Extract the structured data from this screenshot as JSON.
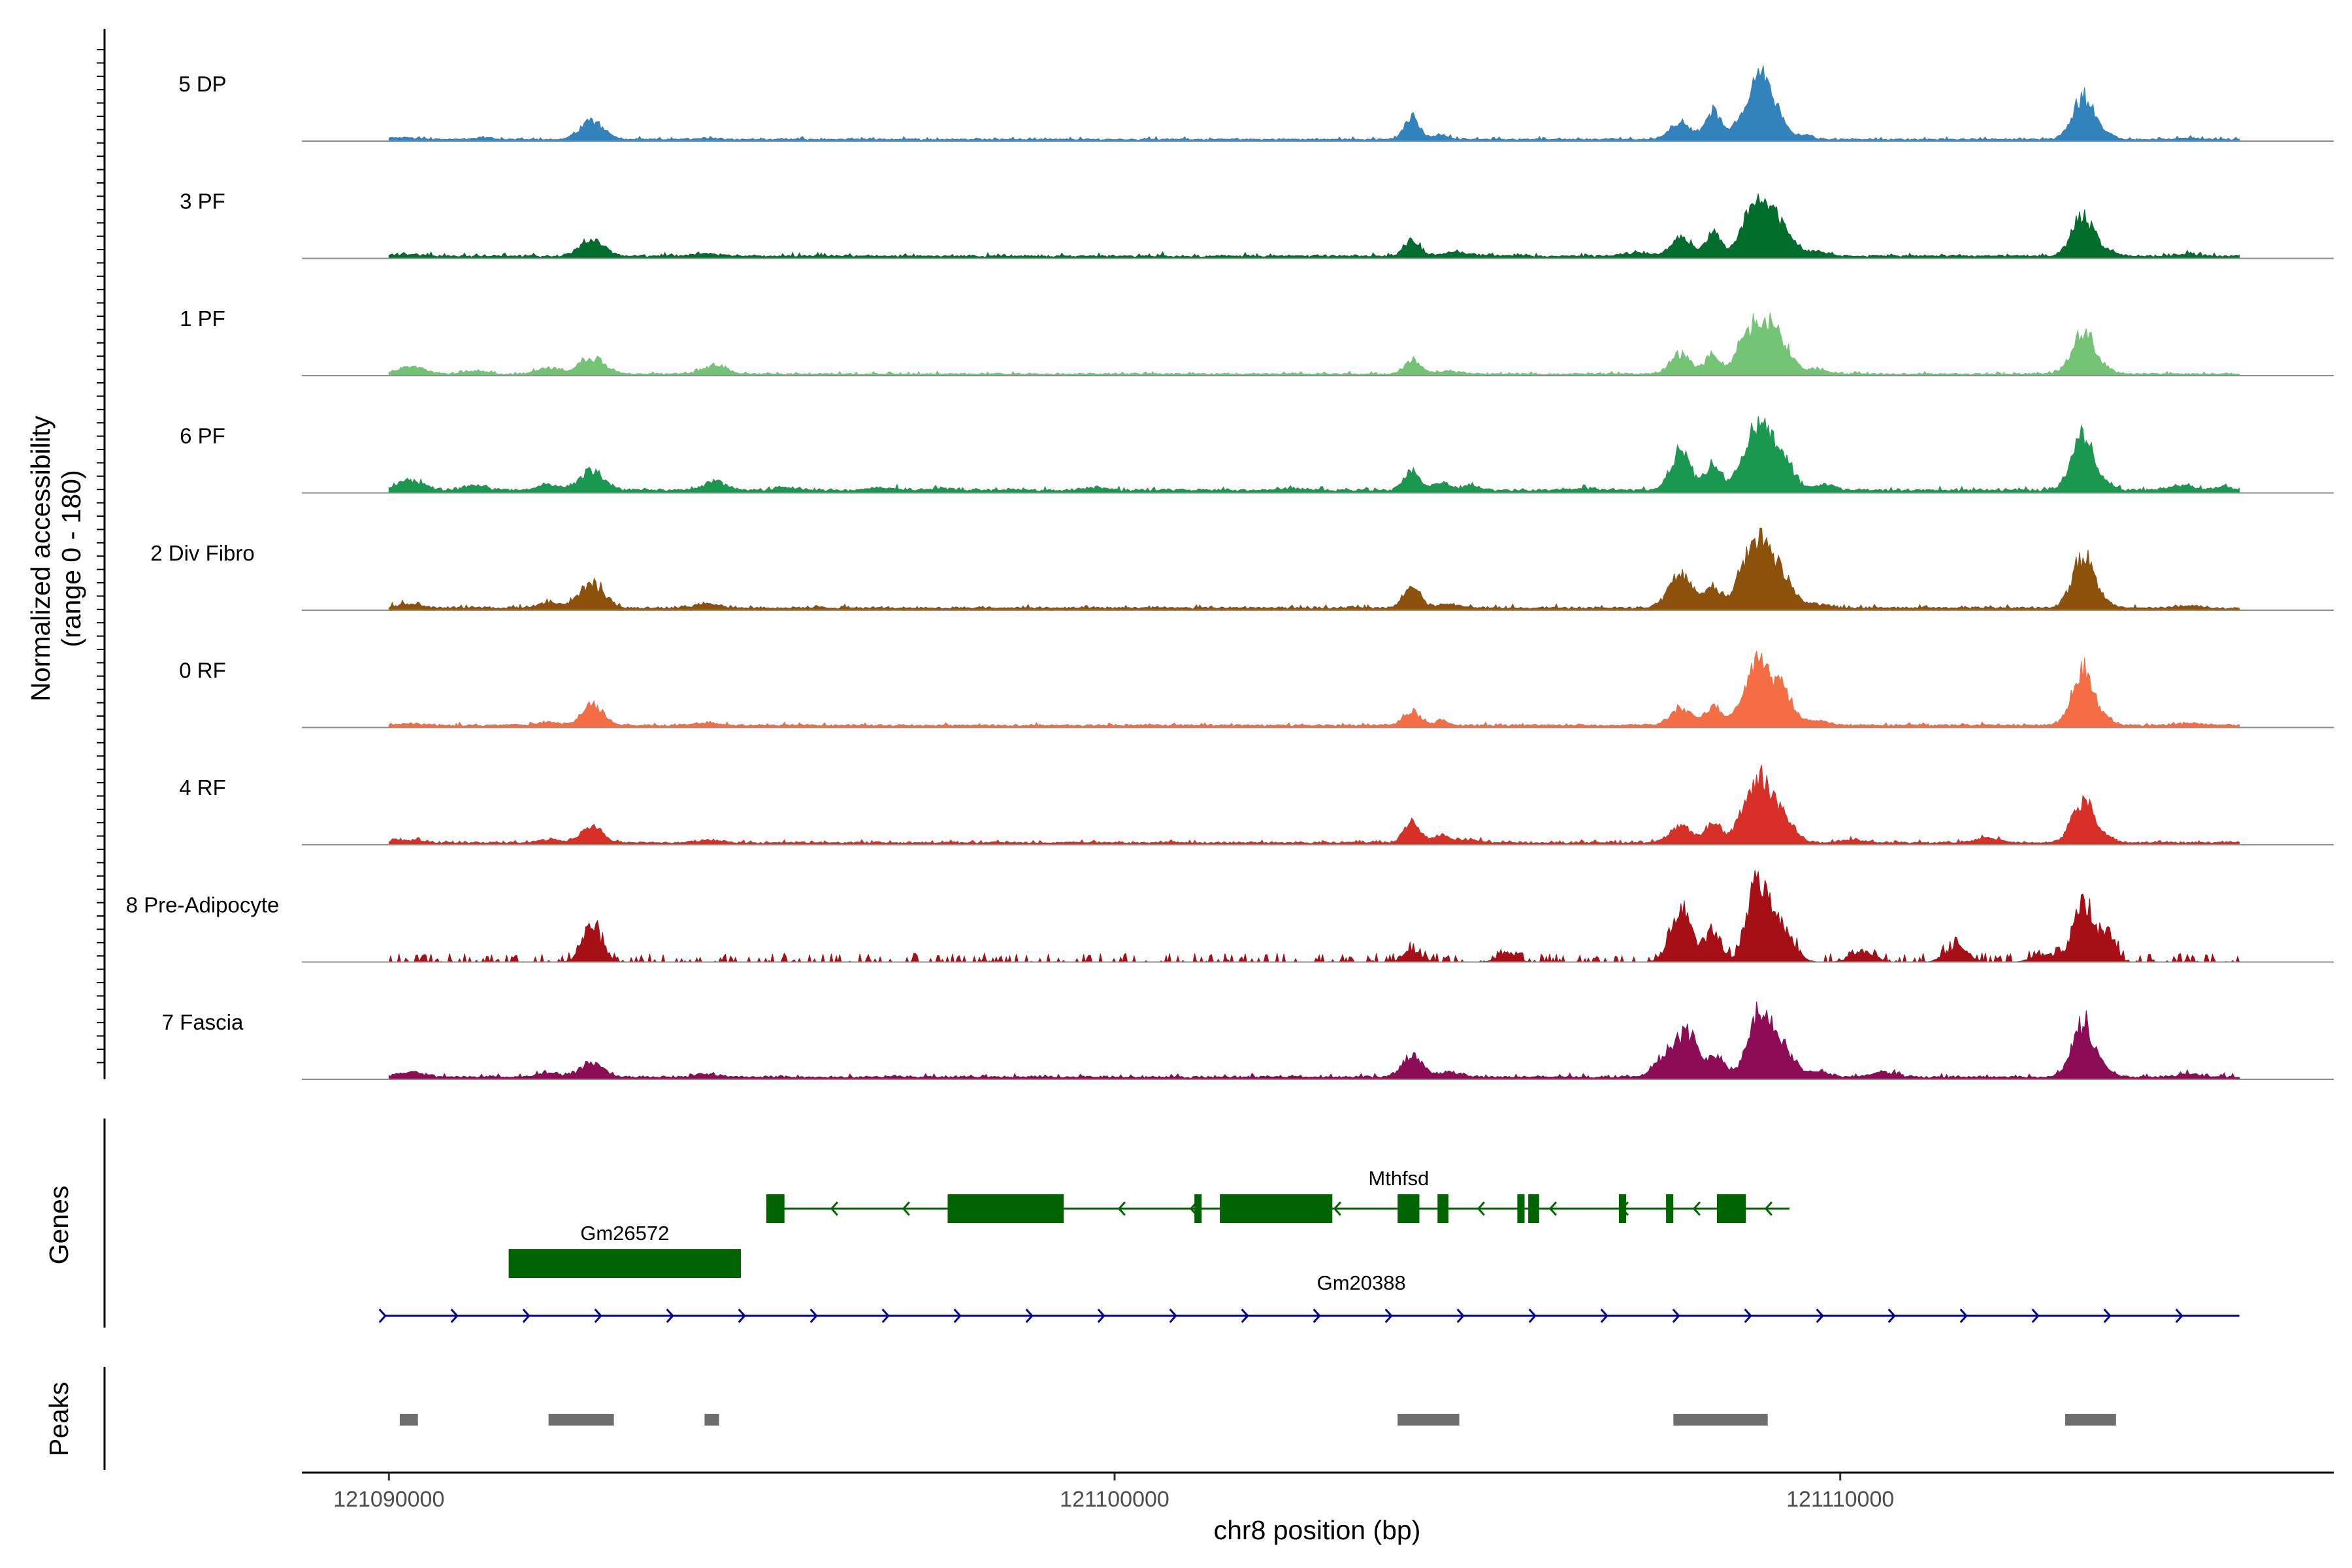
{
  "chart_data": {
    "type": "area",
    "title": "",
    "xlabel": "chr8 position (bp)",
    "ylabel_line1": "Normalized accessibility",
    "ylabel_line2": "(range 0 - 180)",
    "ylim": [
      0,
      180
    ],
    "xlim": [
      121088800,
      121116800
    ],
    "x_ticks": [
      121090000,
      121100000,
      121110000
    ],
    "x_tick_labels": [
      "121090000",
      "121100000",
      "121110000"
    ],
    "signal_range": [
      121090000,
      121115500
    ],
    "tracks": [
      {
        "name": "5 DP",
        "color": "#3182bd",
        "baseline": 3,
        "noise": 3,
        "broad": 0,
        "peaks": [
          [
            121090200,
            4,
            180
          ],
          [
            121091300,
            3,
            150
          ],
          [
            121092800,
            38,
            160
          ],
          [
            121094400,
            3,
            160
          ],
          [
            121104100,
            40,
            110
          ],
          [
            121104500,
            8,
            100
          ],
          [
            121107800,
            35,
            140
          ],
          [
            121108250,
            55,
            110
          ],
          [
            121108600,
            30,
            90
          ],
          [
            121108850,
            100,
            120
          ],
          [
            121109050,
            70,
            150
          ],
          [
            121109500,
            8,
            120
          ],
          [
            121113350,
            85,
            150
          ],
          [
            121113700,
            8,
            100
          ],
          [
            121114800,
            3,
            150
          ]
        ]
      },
      {
        "name": "3 PF",
        "color": "#006d2c",
        "baseline": 4,
        "noise": 4,
        "broad": 0,
        "peaks": [
          [
            121090200,
            4,
            180
          ],
          [
            121092800,
            35,
            160
          ],
          [
            121094400,
            5,
            160
          ],
          [
            121104100,
            32,
            110
          ],
          [
            121104700,
            8,
            180
          ],
          [
            121107200,
            6,
            200
          ],
          [
            121107800,
            40,
            130
          ],
          [
            121108250,
            45,
            110
          ],
          [
            121108600,
            20,
            90
          ],
          [
            121108850,
            105,
            150
          ],
          [
            121109150,
            60,
            180
          ],
          [
            121109700,
            8,
            150
          ],
          [
            121113350,
            80,
            150
          ],
          [
            121113700,
            8,
            100
          ],
          [
            121114800,
            4,
            150
          ]
        ]
      },
      {
        "name": "1 PF",
        "color": "#74c476",
        "baseline": 3,
        "noise": 3,
        "broad": 0,
        "peaks": [
          [
            121090300,
            15,
            180
          ],
          [
            121091200,
            6,
            150
          ],
          [
            121092200,
            12,
            150
          ],
          [
            121092800,
            32,
            170
          ],
          [
            121094500,
            18,
            150
          ],
          [
            121104100,
            28,
            110
          ],
          [
            121104600,
            6,
            160
          ],
          [
            121107800,
            40,
            140
          ],
          [
            121108250,
            38,
            110
          ],
          [
            121108600,
            28,
            90
          ],
          [
            121108850,
            95,
            160
          ],
          [
            121109150,
            65,
            170
          ],
          [
            121109700,
            8,
            150
          ],
          [
            121113350,
            88,
            150
          ],
          [
            121113700,
            6,
            100
          ]
        ]
      },
      {
        "name": "6 PF",
        "color": "#1a9850",
        "baseline": 5,
        "noise": 4,
        "broad": 0,
        "peaks": [
          [
            121090300,
            20,
            180
          ],
          [
            121091200,
            10,
            150
          ],
          [
            121092200,
            12,
            150
          ],
          [
            121092800,
            38,
            170
          ],
          [
            121094500,
            18,
            150
          ],
          [
            121095500,
            6,
            150
          ],
          [
            121096800,
            6,
            150
          ],
          [
            121097600,
            4,
            150
          ],
          [
            121099800,
            5,
            150
          ],
          [
            121102400,
            4,
            150
          ],
          [
            121104100,
            35,
            110
          ],
          [
            121104500,
            15,
            110
          ],
          [
            121104900,
            10,
            120
          ],
          [
            121106500,
            4,
            150
          ],
          [
            121107800,
            75,
            140
          ],
          [
            121108250,
            50,
            110
          ],
          [
            121108600,
            20,
            90
          ],
          [
            121108850,
            110,
            150
          ],
          [
            121109150,
            80,
            170
          ],
          [
            121109800,
            12,
            120
          ],
          [
            121113350,
            105,
            150
          ],
          [
            121113700,
            8,
            100
          ],
          [
            121114700,
            10,
            150
          ],
          [
            121115300,
            6,
            150
          ]
        ]
      },
      {
        "name": "2 Div Fibro",
        "color": "#8c510a",
        "baseline": 4,
        "noise": 4,
        "broad": 0,
        "peaks": [
          [
            121090300,
            8,
            180
          ],
          [
            121092200,
            10,
            150
          ],
          [
            121092800,
            48,
            170
          ],
          [
            121094400,
            8,
            160
          ],
          [
            121104100,
            45,
            110
          ],
          [
            121104600,
            8,
            160
          ],
          [
            121107800,
            70,
            160
          ],
          [
            121108250,
            45,
            110
          ],
          [
            121108600,
            40,
            90
          ],
          [
            121108850,
            120,
            150
          ],
          [
            121109150,
            70,
            180
          ],
          [
            121109700,
            8,
            150
          ],
          [
            121113350,
            105,
            150
          ],
          [
            121113700,
            6,
            100
          ],
          [
            121114800,
            5,
            150
          ]
        ]
      },
      {
        "name": "0 RF",
        "color": "#f46d43",
        "baseline": 4,
        "noise": 3,
        "broad": 0,
        "peaks": [
          [
            121090300,
            4,
            180
          ],
          [
            121092200,
            6,
            150
          ],
          [
            121092800,
            42,
            140
          ],
          [
            121094400,
            5,
            160
          ],
          [
            121104100,
            28,
            110
          ],
          [
            121104500,
            8,
            100
          ],
          [
            121107800,
            35,
            140
          ],
          [
            121108250,
            38,
            110
          ],
          [
            121108600,
            30,
            90
          ],
          [
            121108850,
            105,
            140
          ],
          [
            121109150,
            80,
            170
          ],
          [
            121109700,
            8,
            150
          ],
          [
            121113350,
            110,
            150
          ],
          [
            121113700,
            8,
            100
          ],
          [
            121114800,
            4,
            150
          ]
        ]
      },
      {
        "name": "4 RF",
        "color": "#d73027",
        "baseline": 4,
        "noise": 3,
        "broad": 0,
        "peaks": [
          [
            121090300,
            5,
            180
          ],
          [
            121092200,
            6,
            150
          ],
          [
            121092800,
            35,
            140
          ],
          [
            121094400,
            5,
            160
          ],
          [
            121104100,
            42,
            110
          ],
          [
            121104500,
            15,
            110
          ],
          [
            121104900,
            6,
            150
          ],
          [
            121107800,
            35,
            140
          ],
          [
            121108250,
            42,
            110
          ],
          [
            121108600,
            30,
            90
          ],
          [
            121108850,
            110,
            140
          ],
          [
            121109150,
            70,
            170
          ],
          [
            121110200,
            6,
            150
          ],
          [
            121112000,
            10,
            150
          ],
          [
            121113350,
            85,
            150
          ],
          [
            121113700,
            8,
            100
          ]
        ]
      },
      {
        "name": "8 Pre-Adipocyte",
        "color": "#a50f15",
        "baseline": 0,
        "noise": 8,
        "broad": 1,
        "peaks": [
          [
            121092800,
            70,
            130
          ],
          [
            121104100,
            22,
            120
          ],
          [
            121105400,
            18,
            120
          ],
          [
            121107800,
            110,
            140
          ],
          [
            121108250,
            60,
            110
          ],
          [
            121108850,
            140,
            140
          ],
          [
            121109150,
            80,
            170
          ],
          [
            121110300,
            22,
            150
          ],
          [
            121111600,
            30,
            150
          ],
          [
            121112800,
            15,
            150
          ],
          [
            121113350,
            110,
            150
          ],
          [
            121113700,
            50,
            100
          ]
        ]
      },
      {
        "name": "7 Fascia",
        "color": "#8c0d56",
        "baseline": 4,
        "noise": 4,
        "broad": 0,
        "peaks": [
          [
            121090300,
            10,
            180
          ],
          [
            121092200,
            8,
            150
          ],
          [
            121092800,
            30,
            150
          ],
          [
            121094400,
            5,
            160
          ],
          [
            121104100,
            45,
            130
          ],
          [
            121104600,
            10,
            160
          ],
          [
            121107600,
            40,
            160
          ],
          [
            121107900,
            80,
            150
          ],
          [
            121108300,
            40,
            110
          ],
          [
            121108850,
            110,
            140
          ],
          [
            121109150,
            75,
            170
          ],
          [
            121109700,
            10,
            150
          ],
          [
            121110600,
            10,
            150
          ],
          [
            121113350,
            108,
            150
          ],
          [
            121113700,
            8,
            100
          ],
          [
            121114800,
            6,
            150
          ]
        ]
      }
    ],
    "genes_panel_label": "Genes",
    "peaks_panel_label": "Peaks",
    "genes": [
      {
        "name": "Mthfsd",
        "color": "#006400",
        "strand": "-",
        "start": 121095200,
        "end": 121109300,
        "row": 0,
        "exons": [
          [
            121095200,
            121095450
          ],
          [
            121097700,
            121099300
          ],
          [
            121101100,
            121101200
          ],
          [
            121101450,
            121103000
          ],
          [
            121103900,
            121104200
          ],
          [
            121104450,
            121104600
          ],
          [
            121105550,
            121105650
          ],
          [
            121105700,
            121105850
          ],
          [
            121106950,
            121107050
          ],
          [
            121107600,
            121107700
          ],
          [
            121108300,
            121108700
          ]
        ]
      },
      {
        "name": "Gm26572",
        "color": "#006400",
        "strand": "+",
        "start": 121091650,
        "end": 121094850,
        "row": 1,
        "exons": [
          [
            121091650,
            121094850
          ]
        ]
      },
      {
        "name": "Gm20388",
        "color": "#00008b",
        "strand": "+",
        "start": 121089950,
        "end": 121115500,
        "row": 2,
        "exons": []
      }
    ],
    "peaks": [
      [
        121090150,
        121090400
      ],
      [
        121092200,
        121093100
      ],
      [
        121094350,
        121094550
      ],
      [
        121103900,
        121104750
      ],
      [
        121107700,
        121109000
      ],
      [
        121113100,
        121113800
      ]
    ]
  }
}
